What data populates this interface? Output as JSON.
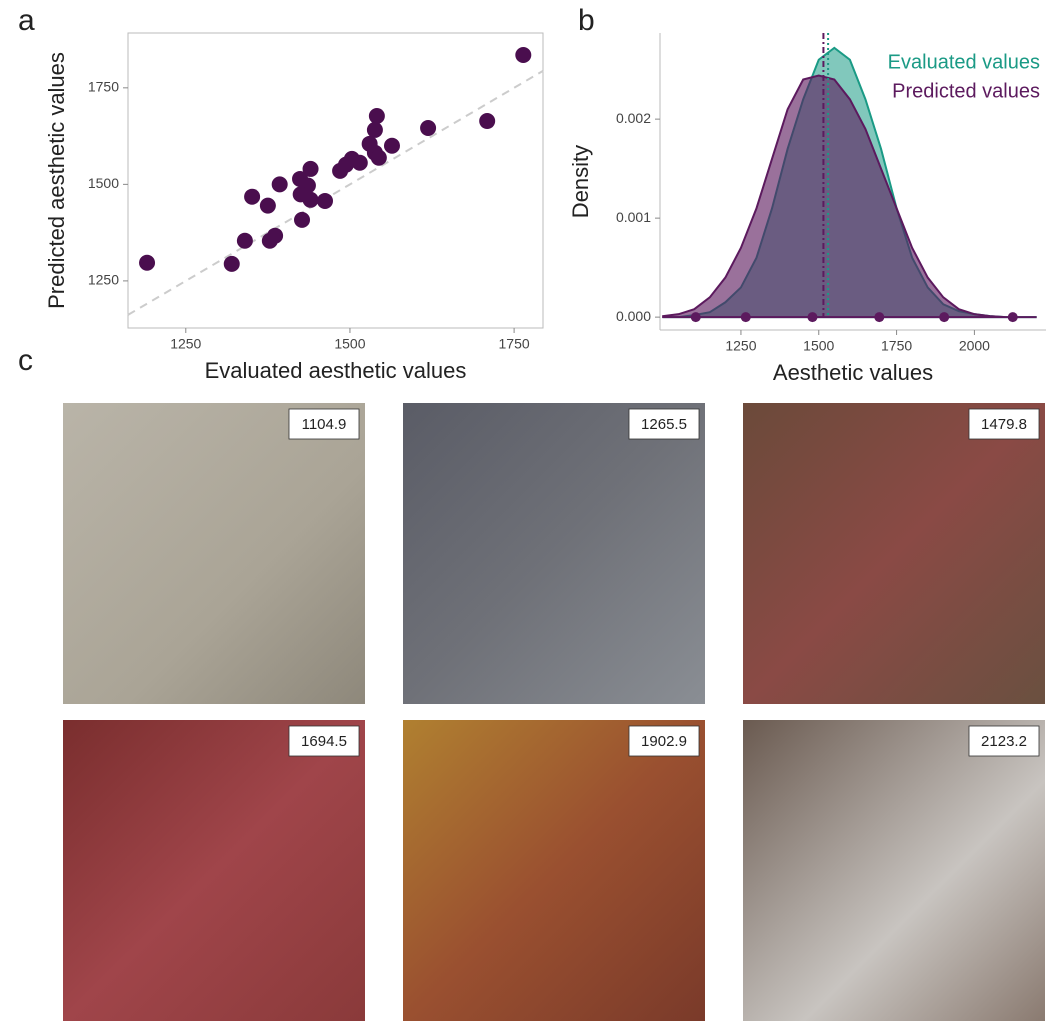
{
  "panels": [
    "a",
    "b",
    "c"
  ],
  "chart_data": [
    {
      "type": "scatter",
      "xlabel": "Evaluated aesthetic values",
      "ylabel": "Predicted aesthetic values",
      "color": "#4a0e4e",
      "identity_line": true,
      "x": [
        1191,
        1320,
        1340,
        1351,
        1375,
        1393,
        1378,
        1386,
        1424,
        1436,
        1425,
        1440,
        1440,
        1427,
        1462,
        1485,
        1503,
        1494,
        1515,
        1530,
        1541,
        1538,
        1538,
        1544,
        1564,
        1619,
        1709,
        1764
      ],
      "values": [
        1297,
        1294,
        1354,
        1468,
        1445,
        1500,
        1354,
        1367,
        1514,
        1497,
        1474,
        1540,
        1460,
        1408,
        1457,
        1535,
        1566,
        1551,
        1556,
        1605,
        1677,
        1641,
        1582,
        1569,
        1600,
        1646,
        1664,
        1835
      ],
      "xlim": [
        1162,
        1794
      ],
      "ylim": [
        1128,
        1892
      ],
      "xticks": [
        1250,
        1500,
        1750
      ],
      "yticks": [
        1250,
        1500,
        1750
      ]
    },
    {
      "type": "density",
      "xlabel": "Aesthetic values",
      "ylabel": "Density",
      "x": [
        1000,
        1050,
        1100,
        1150,
        1200,
        1250,
        1300,
        1350,
        1400,
        1450,
        1500,
        1550,
        1600,
        1650,
        1700,
        1750,
        1800,
        1850,
        1900,
        1950,
        2000,
        2050,
        2100,
        2150,
        2200
      ],
      "series": [
        {
          "name": "Evaluated values",
          "color": "#1a9a85",
          "mean": 1530,
          "values": [
            0,
            0,
            2e-05,
            5e-05,
            0.00015,
            0.0003,
            0.0006,
            0.0011,
            0.0017,
            0.0022,
            0.0026,
            0.00272,
            0.0026,
            0.0022,
            0.0017,
            0.0011,
            0.0006,
            0.0003,
            0.00013,
            6e-05,
            3e-05,
            1e-05,
            0,
            0,
            0
          ]
        },
        {
          "name": "Predicted values",
          "color": "#5c1a5e",
          "mean": 1515,
          "values": [
            1e-05,
            3e-05,
            8e-05,
            0.0002,
            0.0004,
            0.0007,
            0.0011,
            0.0016,
            0.0021,
            0.0024,
            0.00244,
            0.0024,
            0.0022,
            0.0019,
            0.0015,
            0.0011,
            0.0007,
            0.0004,
            0.0002,
            8e-05,
            3e-05,
            1e-05,
            0,
            0,
            0
          ]
        }
      ],
      "rug": [
        1104.9,
        1265.5,
        1479.8,
        1694.5,
        1902.9,
        2123.2
      ],
      "xlim": [
        990,
        2230
      ],
      "ylim": [
        -0.00013,
        0.00287
      ],
      "xticks": [
        1250,
        1500,
        1750,
        2000
      ],
      "yticks": [
        {
          "value": 0,
          "label": "0.000"
        },
        {
          "value": 0.001,
          "label": "0.001"
        },
        {
          "value": 0.002,
          "label": "0.002"
        }
      ]
    }
  ],
  "images": [
    {
      "label": "1104.9"
    },
    {
      "label": "1265.5"
    },
    {
      "label": "1479.8"
    },
    {
      "label": "1694.5"
    },
    {
      "label": "1902.9"
    },
    {
      "label": "2123.2"
    }
  ]
}
